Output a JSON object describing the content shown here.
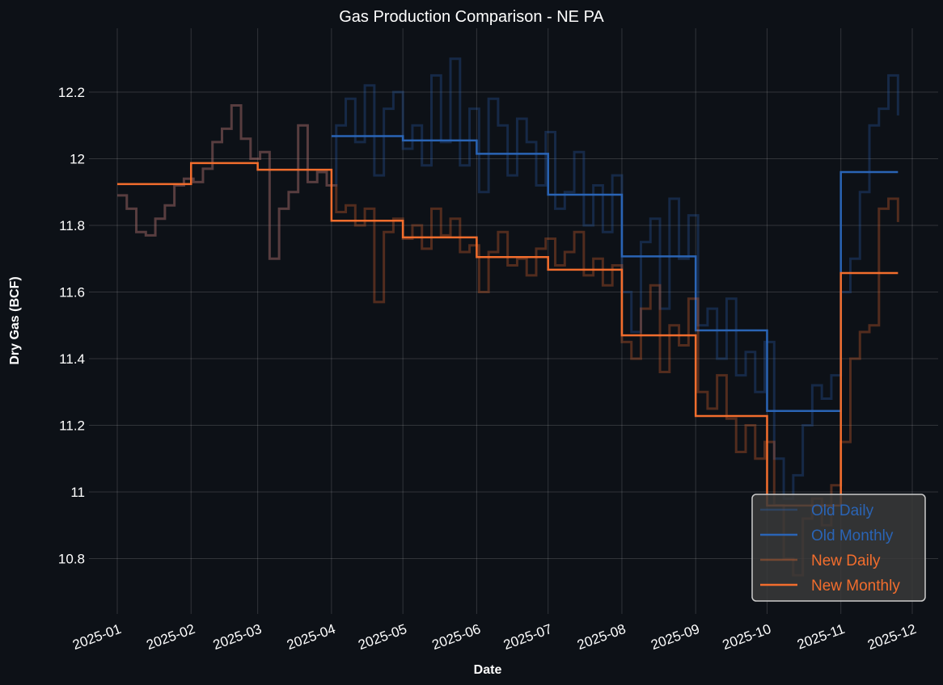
{
  "chart_data": {
    "type": "line",
    "title": "Gas Production Comparison - NE PA",
    "xlabel": "Date",
    "ylabel": "Dry Gas (BCF)",
    "ylim": [
      10.634,
      12.39
    ],
    "xlim": [
      "2024-12-20",
      "2025-12-10"
    ],
    "grid": true,
    "legend_position": "bottom-right",
    "x_ticks": [
      "2025-01",
      "2025-02",
      "2025-03",
      "2025-04",
      "2025-05",
      "2025-06",
      "2025-07",
      "2025-08",
      "2025-09",
      "2025-10",
      "2025-11",
      "2025-12"
    ],
    "y_ticks": [
      {
        "value": 10.8,
        "label": "10.8"
      },
      {
        "value": 11.0,
        "label": "11"
      },
      {
        "value": 11.2,
        "label": "11.2"
      },
      {
        "value": 11.4,
        "label": "11.4"
      },
      {
        "value": 11.6,
        "label": "11.6"
      },
      {
        "value": 11.8,
        "label": "11.8"
      },
      {
        "value": 12.0,
        "label": "12"
      },
      {
        "value": 12.2,
        "label": "12.2"
      }
    ],
    "series": [
      {
        "name": "Old Daily",
        "kind": "daily",
        "color": "#2a64b5",
        "opacity": 0.3,
        "start": "2025-01-01",
        "step_days": 4,
        "values": [
          11.89,
          11.85,
          11.78,
          11.77,
          11.82,
          11.86,
          11.92,
          11.94,
          11.93,
          11.97,
          12.05,
          12.09,
          12.16,
          12.06,
          12.0,
          12.02,
          11.7,
          11.85,
          11.9,
          12.1,
          11.93,
          11.96,
          11.92,
          12.1,
          12.18,
          12.05,
          12.22,
          11.95,
          12.15,
          12.2,
          12.03,
          12.1,
          11.98,
          12.25,
          12.05,
          12.3,
          11.98,
          12.15,
          11.9,
          12.18,
          12.1,
          11.95,
          12.12,
          12.05,
          11.92,
          12.08,
          11.85,
          11.9,
          12.02,
          11.8,
          11.92,
          11.78,
          11.95,
          11.6,
          11.48,
          11.75,
          11.82,
          11.55,
          11.88,
          11.7,
          11.83,
          11.5,
          11.55,
          11.4,
          11.58,
          11.35,
          11.42,
          11.3,
          11.45,
          11.1,
          10.98,
          11.05,
          11.2,
          11.32,
          11.28,
          11.35,
          11.6,
          11.7,
          11.9,
          12.1,
          12.15,
          12.25,
          12.13
        ]
      },
      {
        "name": "Old Monthly",
        "kind": "monthly",
        "color": "#2a64b5",
        "opacity": 1,
        "months": [
          "2025-04",
          "2025-05",
          "2025-06",
          "2025-07",
          "2025-08",
          "2025-09",
          "2025-10",
          "2025-11"
        ],
        "values": [
          12.068,
          12.055,
          12.015,
          11.892,
          11.707,
          11.485,
          11.243,
          11.96
        ],
        "end": "2025-11-25"
      },
      {
        "name": "New Daily",
        "kind": "daily",
        "color": "#f26d2d",
        "opacity": 0.3,
        "start": "2025-01-01",
        "step_days": 4,
        "values": [
          11.89,
          11.85,
          11.78,
          11.77,
          11.82,
          11.86,
          11.92,
          11.94,
          11.93,
          11.97,
          12.05,
          12.09,
          12.16,
          12.06,
          12.0,
          12.02,
          11.7,
          11.85,
          11.9,
          12.1,
          11.93,
          11.96,
          11.92,
          11.84,
          11.86,
          11.8,
          11.85,
          11.57,
          11.78,
          11.82,
          11.76,
          11.8,
          11.73,
          11.85,
          11.77,
          11.82,
          11.72,
          11.74,
          11.6,
          11.72,
          11.78,
          11.68,
          11.7,
          11.65,
          11.73,
          11.76,
          11.68,
          11.72,
          11.78,
          11.65,
          11.7,
          11.62,
          11.68,
          11.45,
          11.4,
          11.55,
          11.62,
          11.36,
          11.5,
          11.44,
          11.58,
          11.3,
          11.25,
          11.35,
          11.22,
          11.12,
          11.2,
          11.1,
          11.15,
          10.96,
          10.8,
          10.75,
          10.92,
          10.98,
          10.9,
          11.02,
          11.15,
          11.4,
          11.48,
          11.5,
          11.85,
          11.88,
          11.81
        ]
      },
      {
        "name": "New Monthly",
        "kind": "monthly",
        "color": "#f26d2d",
        "opacity": 1,
        "months": [
          "2025-01",
          "2025-02",
          "2025-03",
          "2025-04",
          "2025-05",
          "2025-06",
          "2025-07",
          "2025-08",
          "2025-09",
          "2025-10",
          "2025-11"
        ],
        "values": [
          11.924,
          11.987,
          11.967,
          11.814,
          11.764,
          11.705,
          11.667,
          11.47,
          11.228,
          10.959,
          11.657
        ],
        "end": "2025-11-25"
      }
    ]
  }
}
